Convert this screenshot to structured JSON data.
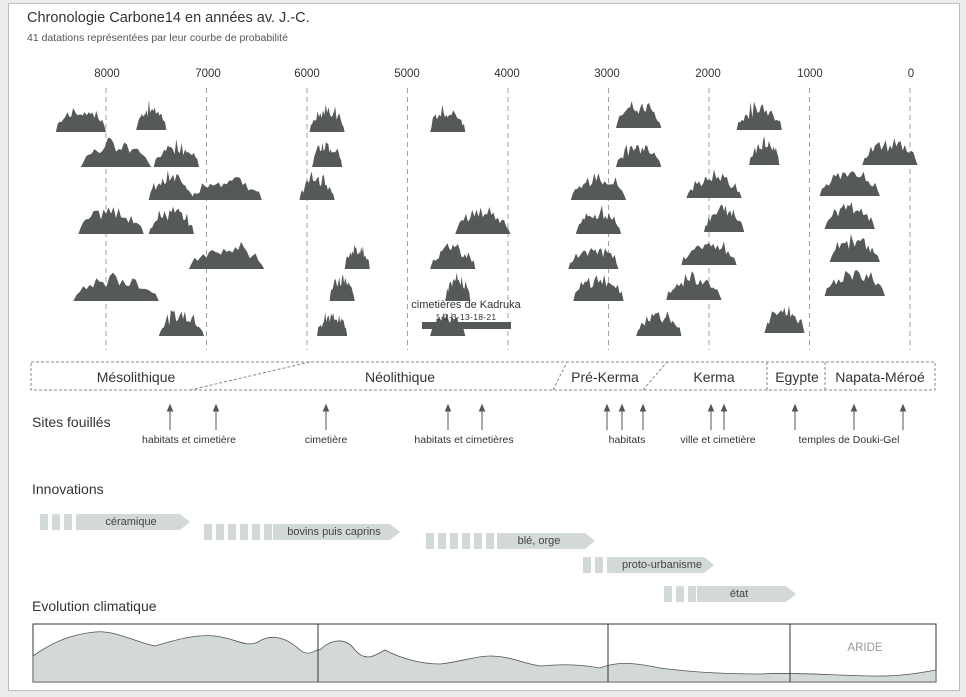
{
  "title": "Chronologie Carbone14 en années av. J.-C.",
  "subtitle": "41 datations représentées par leur courbe de probabilité",
  "axis_ticks": [
    "8000",
    "7000",
    "6000",
    "5000",
    "4000",
    "3000",
    "2000",
    "1000",
    "0"
  ],
  "kadruka": {
    "title": "cimetières de Kadruka",
    "numbers": "1-2-3-13-18-21"
  },
  "periods": [
    "Mésolithique",
    "Néolithique",
    "Pré-Kerma",
    "Kerma",
    "Egypte",
    "Napata-Méroé"
  ],
  "sites": {
    "heading": "Sites fouillés",
    "labels": [
      "habitats et cimetière",
      "cimetière",
      "habitats et cimetières",
      "habitats",
      "ville et cimetière",
      "temples de Douki-Gel"
    ]
  },
  "innovations": {
    "heading": "Innovations",
    "items": [
      "céramique",
      "bovins puis caprins",
      "blé, orge",
      "proto-urbanisme",
      "état"
    ]
  },
  "climate": {
    "heading": "Evolution climatique",
    "aride_label": "ARIDE"
  },
  "colors": {
    "curve_fill": "#555a56",
    "arrow_band": "#d3d8d9",
    "text": "#333333",
    "dash": "#8a8a8a"
  },
  "chart_data": {
    "type": "scatter",
    "title": "Chronologie Carbone14 en années av. J.-C.",
    "subtitle": "41 datations représentées par leur courbe de probabilité",
    "x_axis": {
      "ticks": [
        8000,
        7000,
        6000,
        5000,
        4000,
        3000,
        2000,
        1000,
        0
      ],
      "reversed": true,
      "unit": "années av. J.-C."
    },
    "datations": [
      {
        "center": 7550,
        "width": 300
      },
      {
        "center": 7900,
        "width": 700
      },
      {
        "center": 6800,
        "width": 700
      },
      {
        "center": 7950,
        "width": 650
      },
      {
        "center": 6800,
        "width": 750
      },
      {
        "center": 7900,
        "width": 850
      },
      {
        "center": 7250,
        "width": 450
      },
      {
        "center": 8250,
        "width": 500
      },
      {
        "center": 7300,
        "width": 450
      },
      {
        "center": 7350,
        "width": 450
      },
      {
        "center": 7350,
        "width": 450
      },
      {
        "center": 5500,
        "width": 250
      },
      {
        "center": 5650,
        "width": 250
      },
      {
        "center": 5750,
        "width": 300
      },
      {
        "center": 5800,
        "width": 350
      },
      {
        "center": 5800,
        "width": 300
      },
      {
        "center": 5900,
        "width": 350
      },
      {
        "center": 4250,
        "width": 550
      },
      {
        "center": 4550,
        "width": 450
      },
      {
        "center": 4500,
        "width": 250
      },
      {
        "center": 4600,
        "width": 350
      },
      {
        "center": 4600,
        "width": 350
      },
      {
        "center": 2700,
        "width": 450
      },
      {
        "center": 3100,
        "width": 550
      },
      {
        "center": 3100,
        "width": 450
      },
      {
        "center": 3150,
        "width": 500
      },
      {
        "center": 3100,
        "width": 500
      },
      {
        "center": 2500,
        "width": 450
      },
      {
        "center": 2700,
        "width": 450
      },
      {
        "center": 1450,
        "width": 300
      },
      {
        "center": 1950,
        "width": 550
      },
      {
        "center": 1850,
        "width": 400
      },
      {
        "center": 2000,
        "width": 550
      },
      {
        "center": 2150,
        "width": 550
      },
      {
        "center": 1250,
        "width": 400
      },
      {
        "center": 1500,
        "width": 450
      },
      {
        "center": 200,
        "width": 550
      },
      {
        "center": 600,
        "width": 600
      },
      {
        "center": 600,
        "width": 500
      },
      {
        "center": 550,
        "width": 500
      },
      {
        "center": 550,
        "width": 600
      }
    ]
  }
}
